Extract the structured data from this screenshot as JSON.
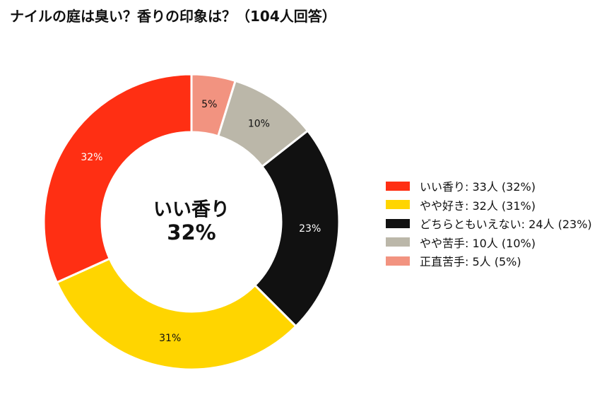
{
  "title": "ナイルの庭は臭い？香りの印象は？（104人回答）",
  "center_label": {
    "line1": "いい香り",
    "line2": "32%"
  },
  "chart_data": {
    "type": "pie",
    "subtype": "donut",
    "title": "ナイルの庭は臭い？香りの印象は？（104人回答）",
    "legend_position": "right",
    "slices": [
      {
        "label": "いい香り",
        "count": 33,
        "percent": 32,
        "color": "#ff2f13",
        "slice_label": "32%",
        "label_color": "#ffffff",
        "legend": "いい香り:  33人 (32%)"
      },
      {
        "label": "やや好き",
        "count": 32,
        "percent": 31,
        "color": "#ffd500",
        "slice_label": "31%",
        "label_color": "#111111",
        "legend": "やや好き:  32人 (31%)"
      },
      {
        "label": "どちらともいえない",
        "count": 24,
        "percent": 23,
        "color": "#111111",
        "slice_label": "23%",
        "label_color": "#ffffff",
        "legend": "どちらともいえない:  24人 (23%)"
      },
      {
        "label": "やや苦手",
        "count": 10,
        "percent": 10,
        "color": "#bbb7a9",
        "slice_label": "10%",
        "label_color": "#111111",
        "legend": "やや苦手:  10人 (10%)"
      },
      {
        "label": "正直苦手",
        "count": 5,
        "percent": 5,
        "color": "#f29380",
        "slice_label": "5%",
        "label_color": "#111111",
        "legend": "正直苦手:  5人 (5%)"
      }
    ],
    "draw_order": [
      4,
      3,
      2,
      1,
      0
    ]
  }
}
